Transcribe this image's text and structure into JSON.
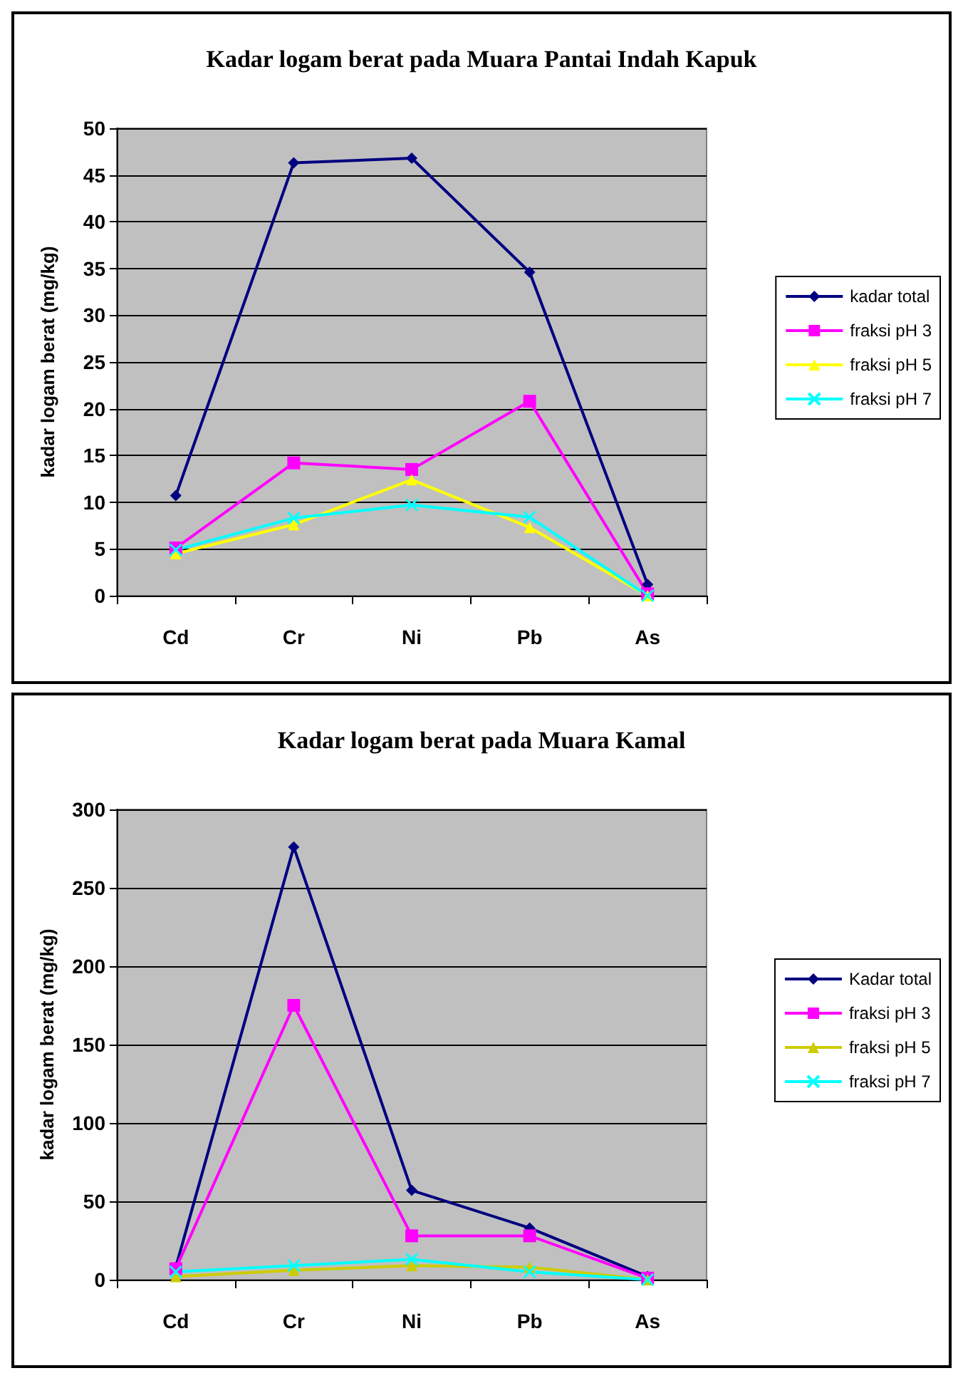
{
  "chart_data": [
    {
      "type": "line",
      "title": "Kadar logam berat pada Muara Pantai Indah Kapuk",
      "ylabel": "kadar logam berat (mg/kg)",
      "categories": [
        "Cd",
        "Cr",
        "Ni",
        "Pb",
        "As"
      ],
      "ylim": [
        0,
        50
      ],
      "yticks": [
        0,
        5,
        10,
        15,
        20,
        25,
        30,
        35,
        40,
        45,
        50
      ],
      "grid": "y",
      "legend": "right",
      "series": [
        {
          "name": "kadar total",
          "color": "#000080",
          "marker": "diamond",
          "values": [
            10.7,
            46.3,
            46.8,
            34.6,
            1.2
          ]
        },
        {
          "name": "fraksi pH 3",
          "color": "#ff00ff",
          "marker": "square",
          "values": [
            5.1,
            14.2,
            13.5,
            20.8,
            0.2
          ]
        },
        {
          "name": "fraksi pH 5",
          "color": "#ffff00",
          "marker": "triangle",
          "values": [
            4.5,
            7.6,
            12.4,
            7.3,
            0
          ]
        },
        {
          "name": "fraksi pH 7",
          "color": "#00ffff",
          "marker": "cross",
          "values": [
            4.9,
            8.3,
            9.7,
            8.4,
            0
          ]
        }
      ]
    },
    {
      "type": "line",
      "title": "Kadar logam berat pada Muara Kamal",
      "ylabel": "kadar logam berat (mg/kg)",
      "categories": [
        "Cd",
        "Cr",
        "Ni",
        "Pb",
        "As"
      ],
      "ylim": [
        0,
        300
      ],
      "yticks": [
        0,
        50,
        100,
        150,
        200,
        250,
        300
      ],
      "grid": "y",
      "legend": "right",
      "series": [
        {
          "name": "Kadar total",
          "color": "#000080",
          "marker": "diamond",
          "values": [
            8,
            276,
            57,
            33,
            2
          ]
        },
        {
          "name": "fraksi pH 3",
          "color": "#ff00ff",
          "marker": "square",
          "values": [
            7,
            175,
            28,
            28,
            1
          ]
        },
        {
          "name": "fraksi pH 5",
          "color": "#cccc00",
          "marker": "triangle",
          "values": [
            2,
            6,
            9,
            8,
            0
          ]
        },
        {
          "name": "fraksi pH 7",
          "color": "#00ffff",
          "marker": "cross",
          "values": [
            5,
            9,
            13,
            5,
            0
          ]
        }
      ]
    }
  ]
}
